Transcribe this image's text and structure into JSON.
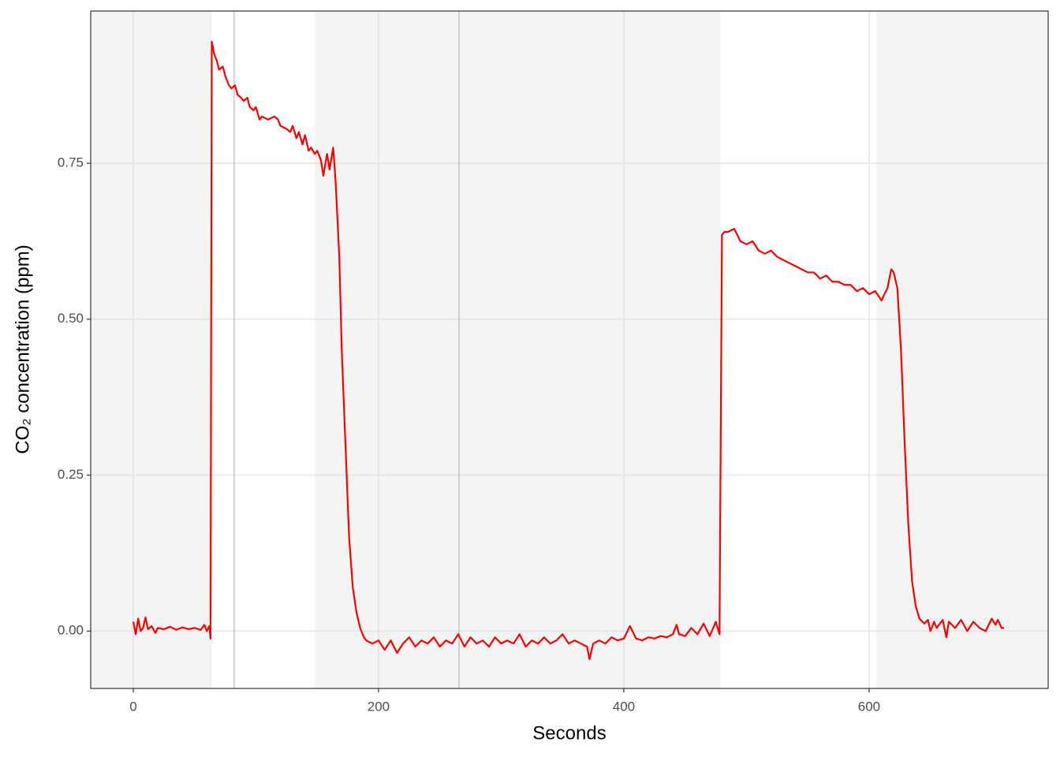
{
  "chart_data": {
    "type": "line",
    "x_label": "Seconds",
    "y_label": "CO₂ concentration (ppm)",
    "color": "#ff0000",
    "xlim": [
      -34.7,
      746
    ],
    "ylim": [
      -0.092,
      0.994
    ],
    "xticks": [
      0,
      200,
      400,
      600
    ],
    "yticks": [
      {
        "value": 0,
        "label": "0.00"
      },
      {
        "value": 0.25,
        "label": "0.25"
      },
      {
        "value": 0.5,
        "label": "0.50"
      },
      {
        "value": 0.75,
        "label": "0.75"
      }
    ],
    "grid": true,
    "shaded_regions": [
      [
        -34.7,
        64
      ],
      [
        148,
        478.5
      ],
      [
        606,
        746
      ]
    ],
    "vlines": [
      82.3,
      265.6
    ],
    "x": [
      0,
      2,
      4,
      6,
      8,
      10,
      12,
      15,
      18,
      20,
      25,
      30,
      35,
      40,
      45,
      50,
      55,
      58,
      60,
      62,
      63,
      64,
      66,
      68,
      70,
      73,
      75,
      78,
      80,
      83,
      85,
      88,
      90,
      93,
      95,
      98,
      100,
      103,
      105,
      110,
      115,
      118,
      120,
      125,
      128,
      130,
      133,
      135,
      138,
      140,
      143,
      145,
      148,
      150,
      153,
      155,
      158,
      160,
      163,
      165,
      168,
      170,
      173,
      176,
      179,
      182,
      185,
      188,
      190,
      195,
      200,
      205,
      210,
      215,
      220,
      225,
      230,
      235,
      240,
      245,
      250,
      255,
      260,
      265,
      270,
      275,
      280,
      285,
      290,
      295,
      300,
      305,
      310,
      315,
      320,
      325,
      330,
      335,
      340,
      345,
      350,
      355,
      360,
      365,
      370,
      372,
      375,
      380,
      385,
      390,
      395,
      400,
      405,
      410,
      415,
      420,
      425,
      430,
      435,
      440,
      443,
      445,
      450,
      455,
      460,
      465,
      470,
      475,
      478,
      480,
      482,
      485,
      490,
      495,
      500,
      505,
      510,
      515,
      520,
      525,
      530,
      535,
      540,
      545,
      550,
      555,
      560,
      565,
      570,
      575,
      580,
      585,
      590,
      595,
      600,
      605,
      610,
      615,
      618,
      620,
      623,
      626,
      629,
      632,
      635,
      638,
      641,
      645,
      648,
      650,
      653,
      655,
      660,
      663,
      665,
      670,
      675,
      680,
      685,
      690,
      695,
      700,
      703,
      705,
      708,
      710
    ],
    "values": [
      0.015,
      -0.005,
      0.02,
      0.0,
      0.005,
      0.022,
      0.003,
      0.008,
      -0.003,
      0.005,
      0.003,
      0.007,
      0.002,
      0.006,
      0.003,
      0.005,
      0.002,
      0.01,
      0.0,
      0.008,
      -0.012,
      0.945,
      0.925,
      0.915,
      0.9,
      0.905,
      0.89,
      0.875,
      0.87,
      0.875,
      0.86,
      0.855,
      0.85,
      0.855,
      0.84,
      0.835,
      0.84,
      0.82,
      0.825,
      0.82,
      0.825,
      0.82,
      0.81,
      0.805,
      0.8,
      0.81,
      0.79,
      0.8,
      0.78,
      0.795,
      0.77,
      0.775,
      0.765,
      0.77,
      0.755,
      0.73,
      0.765,
      0.74,
      0.775,
      0.72,
      0.6,
      0.45,
      0.3,
      0.15,
      0.07,
      0.03,
      0.005,
      -0.01,
      -0.015,
      -0.02,
      -0.015,
      -0.03,
      -0.015,
      -0.035,
      -0.02,
      -0.01,
      -0.025,
      -0.015,
      -0.02,
      -0.01,
      -0.025,
      -0.015,
      -0.02,
      -0.005,
      -0.025,
      -0.01,
      -0.02,
      -0.015,
      -0.025,
      -0.01,
      -0.02,
      -0.015,
      -0.02,
      -0.005,
      -0.025,
      -0.015,
      -0.02,
      -0.01,
      -0.02,
      -0.015,
      -0.005,
      -0.02,
      -0.015,
      -0.02,
      -0.025,
      -0.045,
      -0.02,
      -0.015,
      -0.02,
      -0.01,
      -0.015,
      -0.012,
      0.008,
      -0.012,
      -0.015,
      -0.01,
      -0.012,
      -0.008,
      -0.01,
      -0.005,
      0.01,
      -0.005,
      -0.008,
      0.005,
      -0.005,
      0.012,
      -0.008,
      0.015,
      -0.005,
      0.635,
      0.64,
      0.64,
      0.645,
      0.625,
      0.62,
      0.625,
      0.61,
      0.605,
      0.61,
      0.6,
      0.595,
      0.59,
      0.585,
      0.58,
      0.575,
      0.575,
      0.565,
      0.57,
      0.56,
      0.56,
      0.555,
      0.555,
      0.545,
      0.55,
      0.54,
      0.545,
      0.53,
      0.55,
      0.58,
      0.575,
      0.55,
      0.45,
      0.3,
      0.17,
      0.08,
      0.04,
      0.02,
      0.012,
      0.018,
      0.0,
      0.015,
      0.005,
      0.018,
      -0.01,
      0.015,
      0.005,
      0.018,
      0.0,
      0.015,
      0.005,
      0.0,
      0.02,
      0.01,
      0.018,
      0.005,
      0.005
    ]
  }
}
